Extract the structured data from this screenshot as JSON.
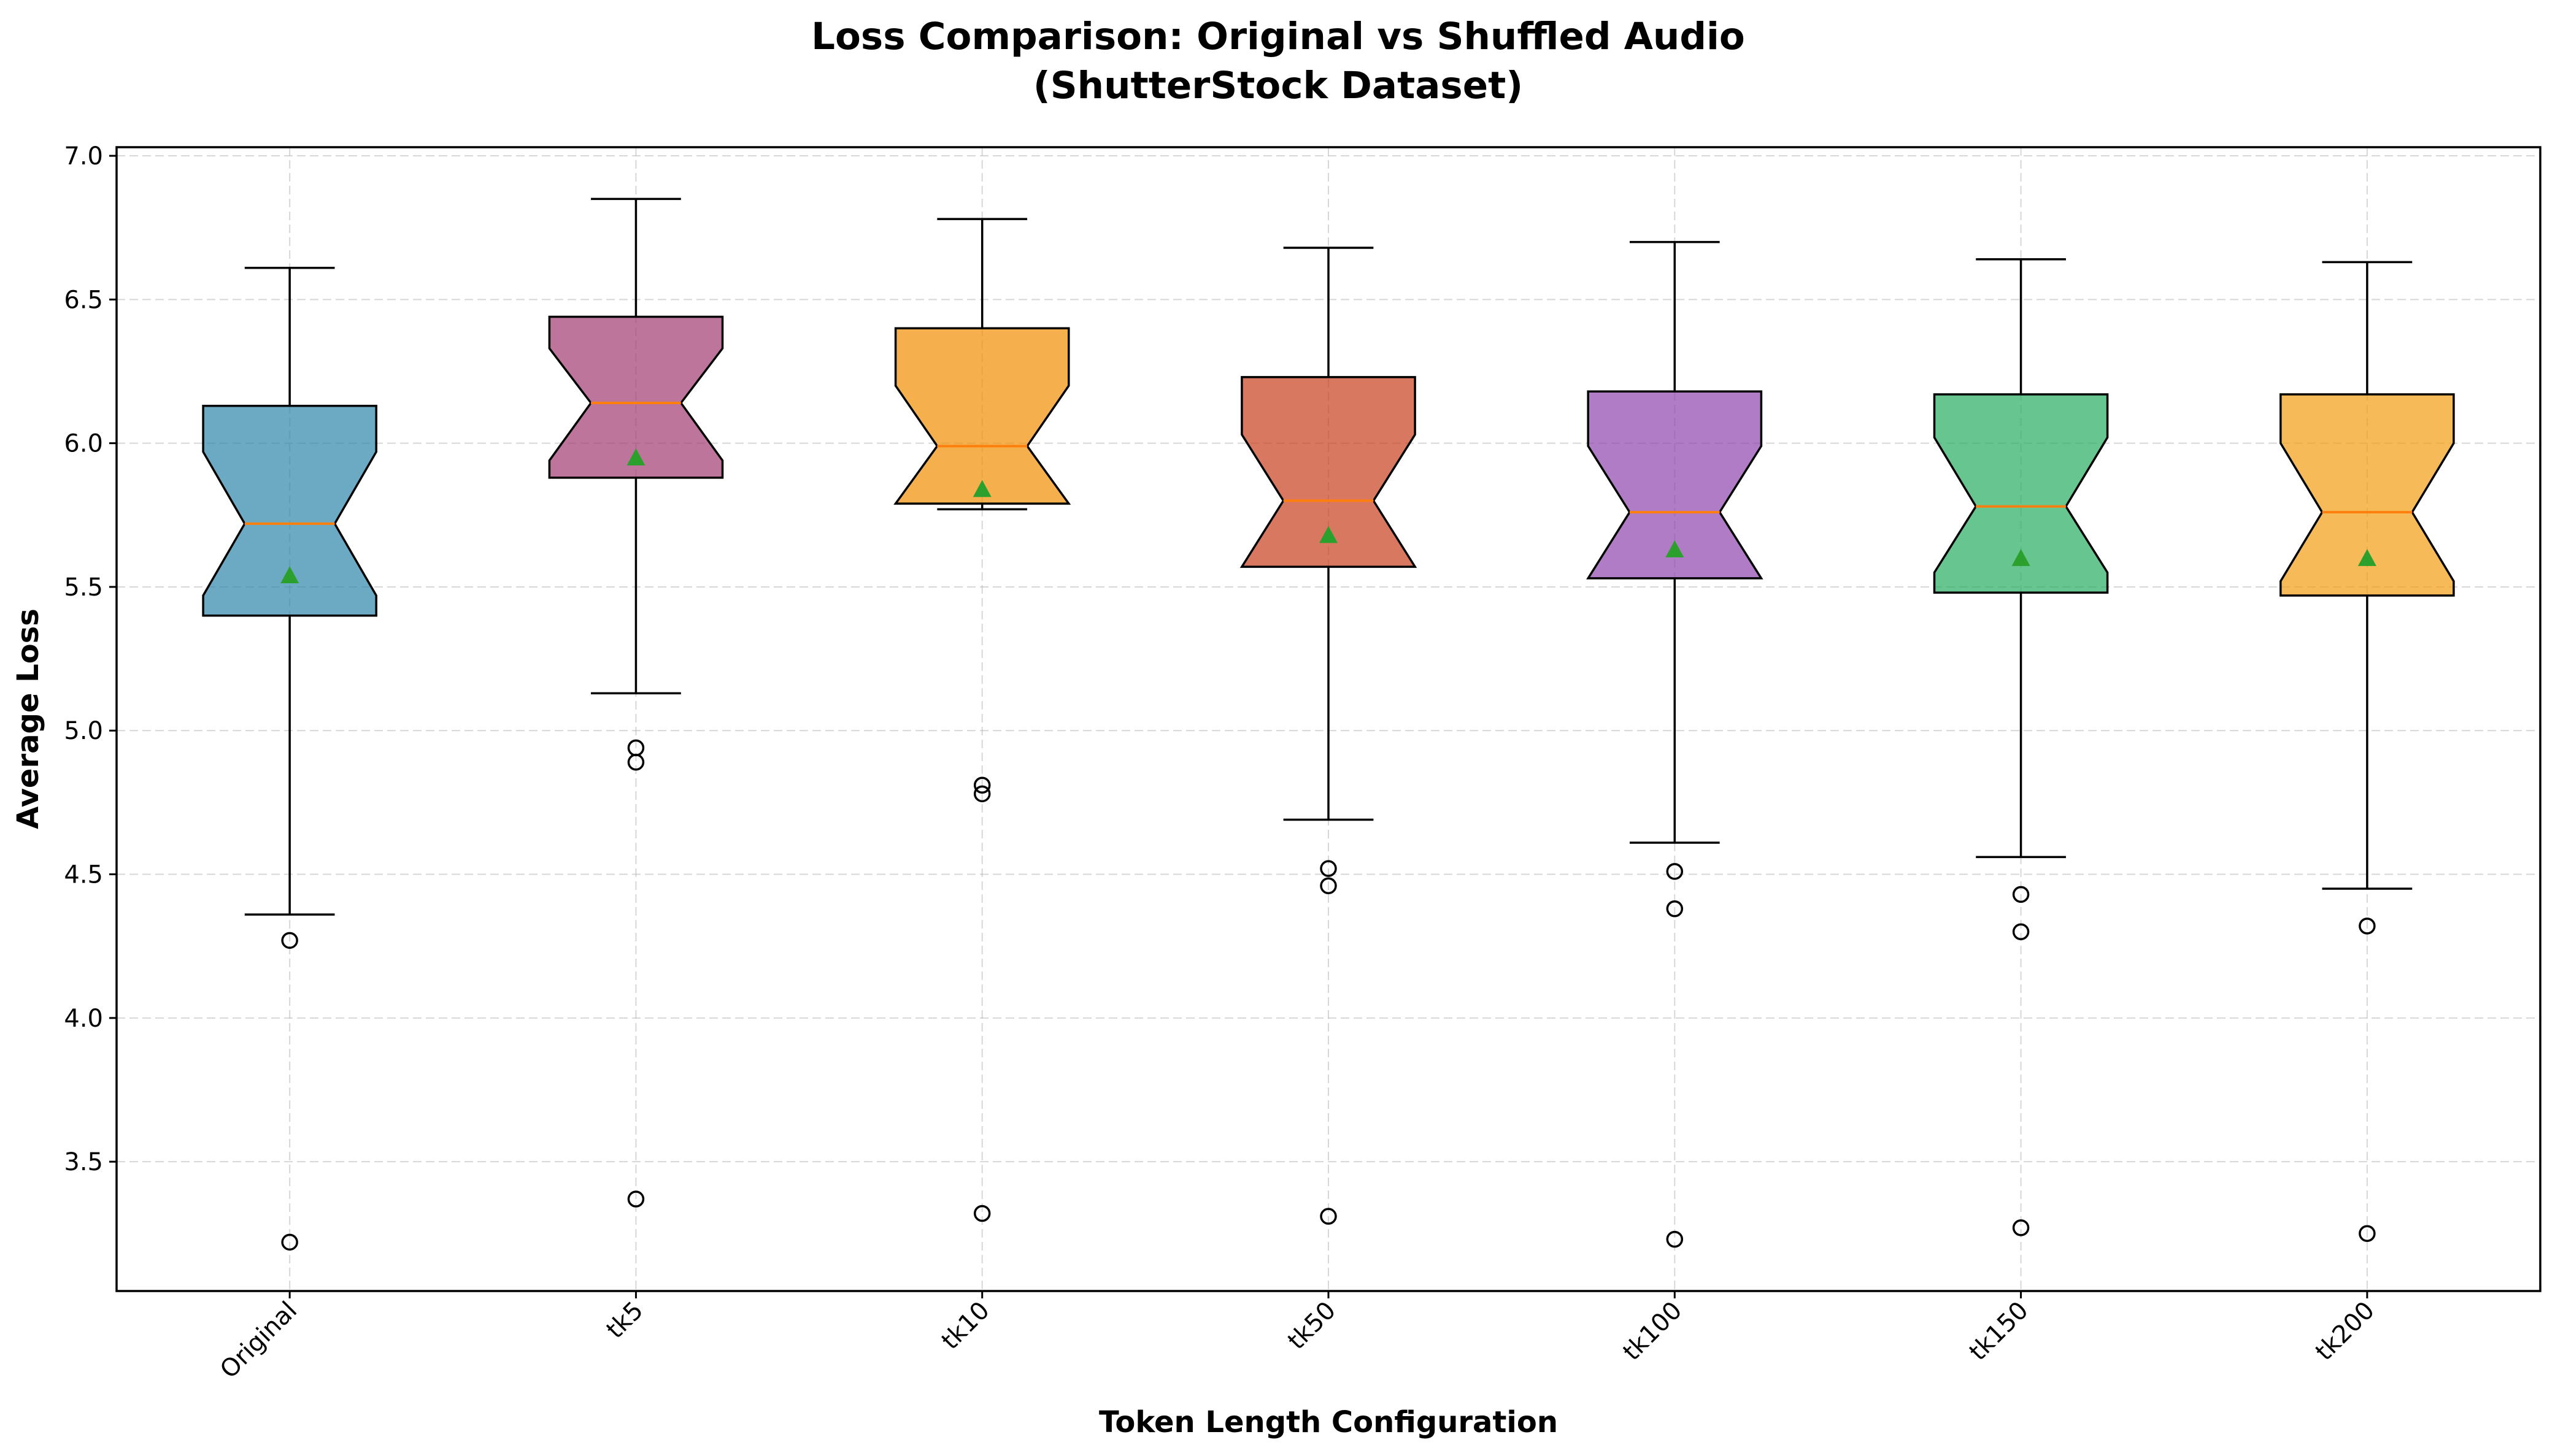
{
  "chart_data": {
    "type": "box",
    "title_line1": "Loss Comparison: Original vs Shuffled Audio",
    "title_line2": "(ShutterStock Dataset)",
    "xlabel": "Token Length Configuration",
    "ylabel": "Average Loss",
    "ylim": [
      3.05,
      7.03
    ],
    "yticks": [
      "3.5",
      "4.0",
      "4.5",
      "5.0",
      "5.5",
      "6.0",
      "6.5",
      "7.0"
    ],
    "grid": true,
    "notched": true,
    "show_means": true,
    "median_color": "#ff7f0e",
    "mean_color": "#2ca02c",
    "categories": [
      "Original",
      "tk5",
      "tk10",
      "tk50",
      "tk100",
      "tk150",
      "tk200"
    ],
    "boxes": [
      {
        "name": "Original",
        "color": "#2E86AB",
        "whisker_low": 4.36,
        "q1": 5.4,
        "median": 5.72,
        "q3": 6.13,
        "whisker_high": 6.61,
        "mean": 5.54,
        "notch_low": 5.47,
        "notch_high": 5.97,
        "outliers": [
          4.27,
          3.22
        ]
      },
      {
        "name": "tk5",
        "color": "#A23B72",
        "whisker_low": 5.13,
        "q1": 5.88,
        "median": 6.14,
        "q3": 6.44,
        "whisker_high": 6.85,
        "mean": 5.95,
        "notch_low": 5.94,
        "notch_high": 6.33,
        "outliers": [
          4.94,
          4.89,
          3.37
        ]
      },
      {
        "name": "tk10",
        "color": "#F18F01",
        "whisker_low": 5.77,
        "q1": 5.79,
        "median": 5.99,
        "q3": 6.4,
        "whisker_high": 6.78,
        "mean": 5.84,
        "notch_low": 5.79,
        "notch_high": 6.2,
        "outliers": [
          4.81,
          4.78,
          3.32
        ]
      },
      {
        "name": "tk50",
        "color": "#C73E1D",
        "whisker_low": 4.69,
        "q1": 5.57,
        "median": 5.8,
        "q3": 6.23,
        "whisker_high": 6.68,
        "mean": 5.68,
        "notch_low": 5.57,
        "notch_high": 6.03,
        "outliers": [
          4.52,
          4.46,
          3.31
        ]
      },
      {
        "name": "tk100",
        "color": "#8E44AD",
        "whisker_low": 4.61,
        "q1": 5.53,
        "median": 5.76,
        "q3": 6.18,
        "whisker_high": 6.7,
        "mean": 5.63,
        "notch_low": 5.53,
        "notch_high": 5.99,
        "outliers": [
          4.51,
          4.38,
          3.23
        ]
      },
      {
        "name": "tk150",
        "color": "#27AE60",
        "whisker_low": 4.56,
        "q1": 5.48,
        "median": 5.78,
        "q3": 6.17,
        "whisker_high": 6.64,
        "mean": 5.6,
        "notch_low": 5.55,
        "notch_high": 6.02,
        "outliers": [
          4.43,
          4.3,
          3.27
        ]
      },
      {
        "name": "tk200",
        "color": "#F39C12",
        "whisker_low": 4.45,
        "q1": 5.47,
        "median": 5.76,
        "q3": 6.17,
        "whisker_high": 6.63,
        "mean": 5.6,
        "notch_low": 5.52,
        "notch_high": 6.0,
        "outliers": [
          4.32,
          3.25
        ]
      }
    ]
  }
}
